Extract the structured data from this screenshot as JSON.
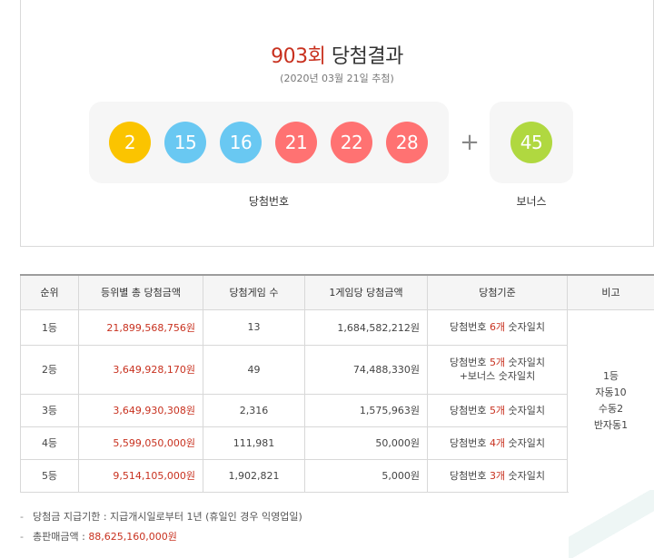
{
  "result": {
    "round_number": "903회",
    "title_suffix": " 당첨결과",
    "draw_date": "(2020년 03월 21일 추첨)",
    "winning_numbers": [
      {
        "value": "2",
        "color": "#fbc400"
      },
      {
        "value": "15",
        "color": "#69c8f2"
      },
      {
        "value": "16",
        "color": "#69c8f2"
      },
      {
        "value": "21",
        "color": "#ff7272"
      },
      {
        "value": "22",
        "color": "#ff7272"
      },
      {
        "value": "28",
        "color": "#ff7272"
      }
    ],
    "plus_sign": "+",
    "bonus_number": {
      "value": "45",
      "color": "#b0d840"
    },
    "winning_label": "당첨번호",
    "bonus_label": "보너스"
  },
  "table": {
    "headers": [
      "순위",
      "등위별 총 당첨금액",
      "당첨게임 수",
      "1게임당 당첨금액",
      "당첨기준",
      "비고"
    ],
    "rows": [
      {
        "rank": "1등",
        "total": "21,899,568,756원",
        "count": "13",
        "per_game": "1,684,582,212원",
        "criteria_pre": "당첨번호 ",
        "criteria_hl": "6개",
        "criteria_post": " 숫자일치",
        "criteria_extra": ""
      },
      {
        "rank": "2등",
        "total": "3,649,928,170원",
        "count": "49",
        "per_game": "74,488,330원",
        "criteria_pre": "당첨번호 ",
        "criteria_hl": "5개",
        "criteria_post": " 숫자일치",
        "criteria_extra": "+보너스 숫자일치"
      },
      {
        "rank": "3등",
        "total": "3,649,930,308원",
        "count": "2,316",
        "per_game": "1,575,963원",
        "criteria_pre": "당첨번호 ",
        "criteria_hl": "5개",
        "criteria_post": " 숫자일치",
        "criteria_extra": ""
      },
      {
        "rank": "4등",
        "total": "5,599,050,000원",
        "count": "111,981",
        "per_game": "50,000원",
        "criteria_pre": "당첨번호 ",
        "criteria_hl": "4개",
        "criteria_post": " 숫자일치",
        "criteria_extra": ""
      },
      {
        "rank": "5등",
        "total": "9,514,105,000원",
        "count": "1,902,821",
        "per_game": "5,000원",
        "criteria_pre": "당첨번호 ",
        "criteria_hl": "3개",
        "criteria_post": " 숫자일치",
        "criteria_extra": ""
      }
    ],
    "remarks": [
      "1등",
      "자동10",
      "수동2",
      "반자동1"
    ]
  },
  "notes": {
    "dash": "-",
    "deadline": "당첨금 지급기한 : 지급개시일로부터 1년 (휴일인 경우 익영업일)",
    "sales_label": "총판매금액 : ",
    "sales_value": "88,625,160,000원"
  }
}
